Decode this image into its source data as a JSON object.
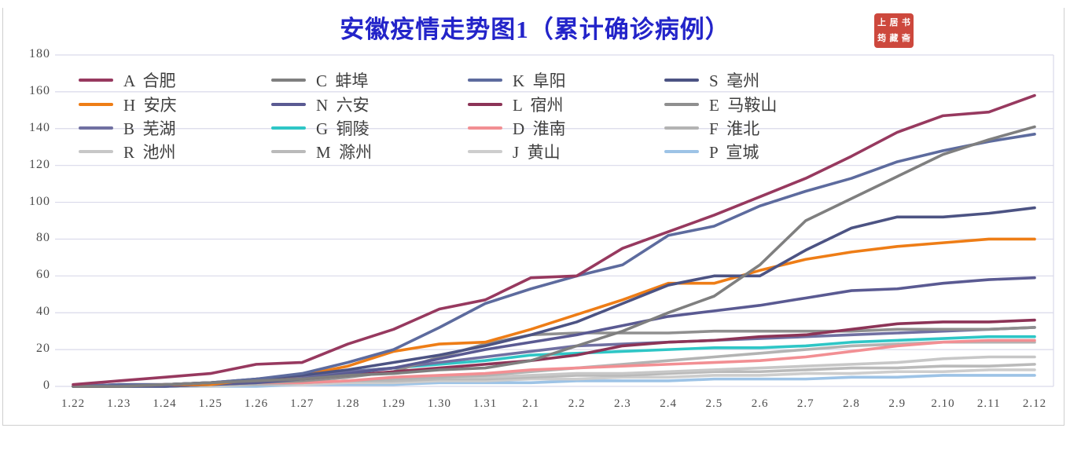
{
  "title": "安徽疫情走势图1（累计确诊病例）",
  "seal": {
    "text": "上居书筠藏斋",
    "color": "#C9392D"
  },
  "colors": {
    "title": "#2324C9",
    "axis_text": "#4C4C4C",
    "grid": "#D9D9EA",
    "frame": "#CFCFCF"
  },
  "chart_data": {
    "type": "line",
    "title": "安徽疫情走势图1（累计确诊病例）",
    "xlabel": "",
    "ylabel": "",
    "ylim": [
      0,
      180
    ],
    "ytick_step": 20,
    "yticks": [
      0,
      20,
      40,
      60,
      80,
      100,
      120,
      140,
      160,
      180
    ],
    "grid": true,
    "legend_position": "top-left, 4 columns",
    "x": [
      "1.22",
      "1.23",
      "1.24",
      "1.25",
      "1.26",
      "1.27",
      "1.28",
      "1.29",
      "1.30",
      "1.31",
      "2.1",
      "2.2",
      "2.3",
      "2.4",
      "2.5",
      "2.6",
      "2.7",
      "2.8",
      "2.9",
      "2.10",
      "2.11",
      "2.12"
    ],
    "series": [
      {
        "letter": "A",
        "city": "合肥",
        "label": "A  合肥",
        "color": "#97395F",
        "values": [
          1,
          3,
          5,
          7,
          12,
          13,
          23,
          31,
          42,
          47,
          59,
          60,
          75,
          84,
          93,
          103,
          113,
          125,
          138,
          147,
          149,
          158
        ]
      },
      {
        "letter": "C",
        "city": "蚌埠",
        "label": "C  蚌埠",
        "color": "#7F7F7F",
        "values": [
          0,
          0,
          1,
          2,
          3,
          4,
          6,
          7,
          9,
          10,
          14,
          22,
          30,
          40,
          49,
          66,
          90,
          102,
          114,
          126,
          134,
          141
        ]
      },
      {
        "letter": "K",
        "city": "阜阳",
        "label": "K  阜阳",
        "color": "#5D6B9E",
        "values": [
          0,
          1,
          1,
          2,
          4,
          7,
          13,
          20,
          32,
          45,
          53,
          60,
          66,
          82,
          87,
          98,
          106,
          113,
          122,
          128,
          133,
          137
        ]
      },
      {
        "letter": "S",
        "city": "亳州",
        "label": "S  亳州",
        "color": "#4C5383",
        "values": [
          0,
          0,
          1,
          2,
          4,
          6,
          9,
          13,
          17,
          22,
          28,
          35,
          45,
          55,
          60,
          60,
          74,
          86,
          92,
          92,
          94,
          97
        ]
      },
      {
        "letter": "H",
        "city": "安庆",
        "label": "H  安庆",
        "color": "#EE7D16",
        "values": [
          0,
          0,
          1,
          1,
          4,
          6,
          11,
          19,
          23,
          24,
          31,
          39,
          47,
          56,
          56,
          63,
          69,
          73,
          76,
          78,
          80,
          80
        ]
      },
      {
        "letter": "N",
        "city": "六安",
        "label": "N  六安",
        "color": "#5A5A92",
        "values": [
          0,
          0,
          0,
          1,
          2,
          4,
          7,
          10,
          15,
          20,
          24,
          28,
          33,
          38,
          41,
          44,
          48,
          52,
          53,
          56,
          58,
          59
        ]
      },
      {
        "letter": "L",
        "city": "宿州",
        "label": "L  宿州",
        "color": "#8C3457",
        "values": [
          0,
          1,
          1,
          2,
          3,
          4,
          6,
          8,
          10,
          12,
          14,
          17,
          22,
          24,
          25,
          27,
          28,
          31,
          34,
          35,
          35,
          36
        ]
      },
      {
        "letter": "E",
        "city": "马鞍山",
        "label": "E  马鞍山",
        "color": "#8F8F8F",
        "values": [
          0,
          0,
          0,
          1,
          2,
          3,
          5,
          8,
          16,
          23,
          28,
          29,
          29,
          29,
          30,
          30,
          30,
          30,
          31,
          31,
          31,
          32
        ]
      },
      {
        "letter": "B",
        "city": "芜湖",
        "label": "B  芜湖",
        "color": "#7070A2",
        "values": [
          0,
          0,
          1,
          2,
          3,
          5,
          8,
          10,
          13,
          16,
          19,
          22,
          23,
          24,
          25,
          26,
          27,
          28,
          29,
          30,
          31,
          32
        ]
      },
      {
        "letter": "G",
        "city": "铜陵",
        "label": "G  铜陵",
        "color": "#2EC6C6",
        "values": [
          0,
          0,
          0,
          1,
          2,
          4,
          8,
          10,
          12,
          14,
          17,
          18,
          19,
          20,
          21,
          21,
          22,
          24,
          25,
          26,
          27,
          27
        ]
      },
      {
        "letter": "D",
        "city": "淮南",
        "label": "D  淮南",
        "color": "#F28F93",
        "values": [
          0,
          0,
          1,
          1,
          2,
          2,
          3,
          5,
          6,
          7,
          9,
          10,
          11,
          12,
          13,
          14,
          16,
          19,
          22,
          24,
          25,
          25
        ]
      },
      {
        "letter": "F",
        "city": "淮北",
        "label": "F  淮北",
        "color": "#B3B3B3",
        "values": [
          0,
          0,
          0,
          1,
          1,
          2,
          3,
          4,
          5,
          6,
          8,
          10,
          12,
          14,
          16,
          18,
          20,
          22,
          23,
          24,
          24,
          24
        ]
      },
      {
        "letter": "R",
        "city": "池州",
        "label": "R  池州",
        "color": "#C7C7C7",
        "values": [
          0,
          0,
          0,
          1,
          1,
          2,
          3,
          4,
          5,
          5,
          6,
          7,
          7,
          8,
          9,
          10,
          11,
          12,
          13,
          15,
          16,
          16
        ]
      },
      {
        "letter": "M",
        "city": "滁州",
        "label": "M  滁州",
        "color": "#BABABA",
        "values": [
          0,
          0,
          0,
          1,
          2,
          2,
          3,
          3,
          4,
          4,
          5,
          6,
          6,
          7,
          8,
          8,
          9,
          10,
          10,
          11,
          11,
          12
        ]
      },
      {
        "letter": "J",
        "city": "黄山",
        "label": "J  黄山",
        "color": "#CDCDCD",
        "values": [
          0,
          0,
          0,
          0,
          1,
          1,
          2,
          2,
          3,
          3,
          4,
          4,
          5,
          5,
          6,
          6,
          7,
          7,
          8,
          8,
          9,
          9
        ]
      },
      {
        "letter": "P",
        "city": "宣城",
        "label": "P  宣城",
        "color": "#9DC3E6",
        "values": [
          0,
          0,
          0,
          0,
          0,
          1,
          1,
          1,
          2,
          2,
          2,
          3,
          3,
          3,
          4,
          4,
          4,
          5,
          5,
          6,
          6,
          6
        ]
      }
    ]
  }
}
